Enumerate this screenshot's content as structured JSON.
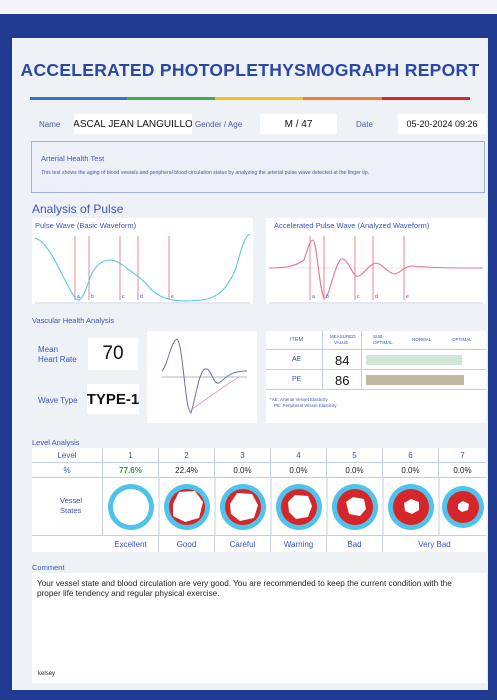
{
  "report": {
    "title": "ACCELERATED PHOTOPLETHYSMOGRAPH REPORT",
    "name_label": "Name",
    "name_value": "ASCAL JEAN LANGUILLO",
    "gender_age_label": "Gender / Age",
    "gender_age_value": "M / 47",
    "date_label": "Date",
    "date_value": "05-20-2024 09:26"
  },
  "arterial": {
    "title": "Arterial Health Test",
    "description": "This test shows the aging of blood vessels and peripheral blood circulation status by analyzing the arterial pulse wave detected at the finger tip."
  },
  "pulse": {
    "section_title": "Analysis of Pulse",
    "basic_title": "Pulse Wave (Basic Waveform)",
    "accel_title": "Accelerated Pulse Wave (Analyzed Waveform)",
    "marker_labels": [
      "a",
      "b",
      "c",
      "d",
      "e"
    ]
  },
  "vascular": {
    "section_title": "Vascular Health Analysis",
    "hr_label_1": "Mean",
    "hr_label_2": "Heart Rate",
    "hr_value": "70",
    "wave_type_label": "Wave Type",
    "wave_type_value": "TYPE-1",
    "headers": {
      "item": "ITEM",
      "measured_1": "MEASURED",
      "measured_2": "VALUE",
      "sub_1": "SUB-",
      "sub_2": "OPTIMAL",
      "normal": "NORMAL",
      "optimal": "OPTIMAL"
    },
    "rows": [
      {
        "item": "AE",
        "value": "84",
        "bar_fraction": 0.95,
        "bar_color": "#cfe7d6"
      },
      {
        "item": "PE",
        "value": "86",
        "bar_fraction": 0.97,
        "bar_color": "#c3b9a3"
      }
    ],
    "footnote_1": "*AE: Arterial Vessel Elasticity",
    "footnote_2": "PE: Peripheral Vessel Elasticity"
  },
  "level": {
    "section_title": "Level Analysis",
    "level_label": "Level",
    "percent_label": "%",
    "states_label_1": "Vessel",
    "states_label_2": "States",
    "levels": [
      "1",
      "2",
      "3",
      "4",
      "5",
      "6",
      "7"
    ],
    "percents": [
      "77.6%",
      "22.4%",
      "0.0%",
      "0.0%",
      "0.0%",
      "0.0%",
      "0.0%"
    ],
    "highlight_color": "#2f9a3c",
    "states": [
      "Excellent",
      "Good",
      "Careful",
      "Warning",
      "Bad",
      "Very Bad"
    ]
  },
  "comment": {
    "label": "Comment",
    "text": "Your vessel state and blood circulation are very good. You are recommended to keep the current condition with the proper life tendency and regular physical exercise.",
    "signature": "kelsey"
  }
}
